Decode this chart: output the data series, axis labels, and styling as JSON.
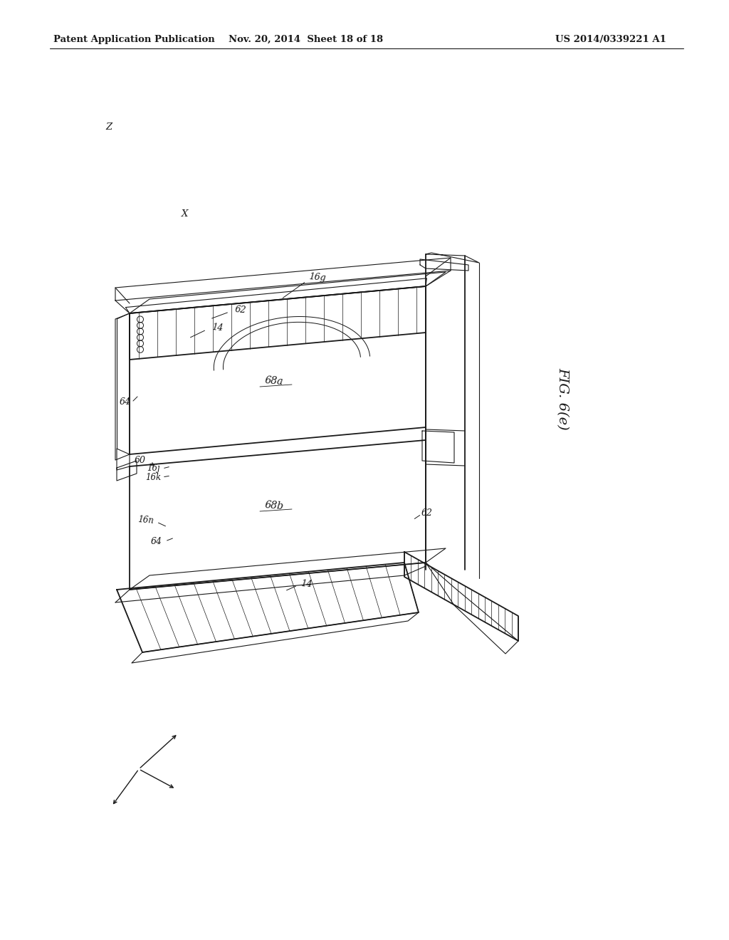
{
  "bg_color": "#ffffff",
  "header_left": "Patent Application Publication",
  "header_mid": "Nov. 20, 2014  Sheet 18 of 18",
  "header_right": "US 2014/0339221 A1",
  "fig_label": "FIG. 6(e)"
}
